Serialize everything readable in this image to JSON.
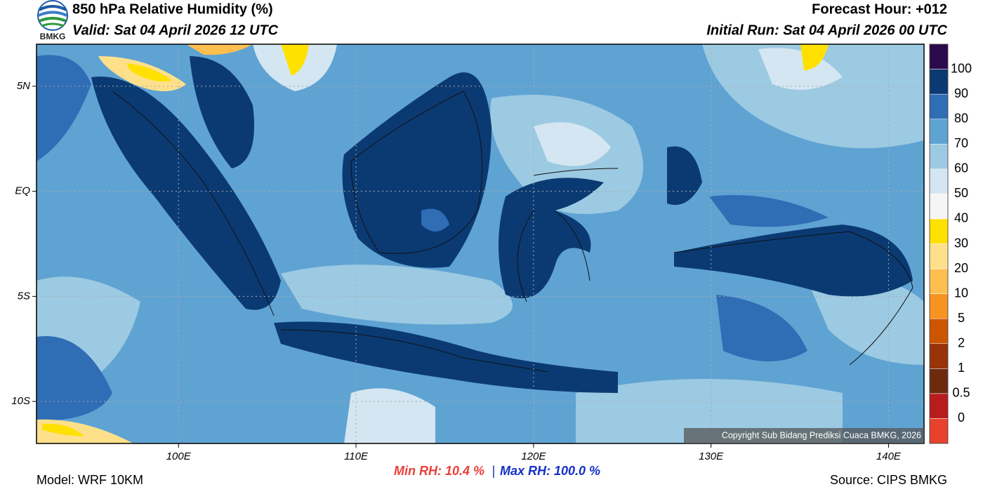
{
  "header": {
    "logo_text": "BMKG",
    "title": "850 hPa Relative Humidity (%)",
    "valid": "Valid: Sat 04 April 2026 12 UTC",
    "forecast_hour": "Forecast Hour: +012",
    "initial_run": "Initial Run: Sat 04 April 2026 00 UTC"
  },
  "map": {
    "lon_range": [
      92,
      142
    ],
    "lat_range": [
      -12,
      7
    ],
    "lat_ticks": [
      {
        "value": 5,
        "label": "5N"
      },
      {
        "value": 0,
        "label": "EQ"
      },
      {
        "value": -5,
        "label": "5S"
      },
      {
        "value": -10,
        "label": "10S"
      }
    ],
    "lon_ticks": [
      {
        "value": 100,
        "label": "100E"
      },
      {
        "value": 110,
        "label": "110E"
      },
      {
        "value": 120,
        "label": "120E"
      },
      {
        "value": 130,
        "label": "130E"
      },
      {
        "value": 140,
        "label": "140E"
      }
    ],
    "copyright": "Copyright Sub Bidang Prediksi Cuaca BMKG, 2026"
  },
  "colorbar": {
    "colors": [
      "#e8412e",
      "#b81c1c",
      "#6e2a0e",
      "#99330a",
      "#cc5500",
      "#f79320",
      "#fdc050",
      "#fee08b",
      "#ffe100",
      "#f5f5f5",
      "#d4e6f1",
      "#9ccae2",
      "#5fa3d3",
      "#2f6db5",
      "#0b3a73",
      "#2a0a4a"
    ],
    "labels": [
      0,
      0.5,
      1,
      2,
      5,
      10,
      20,
      30,
      40,
      50,
      60,
      70,
      80,
      90,
      100
    ]
  },
  "footer": {
    "model": "Model: WRF 10KM",
    "min_rh": "Min RH:  10.4 %",
    "separator": "|",
    "max_rh": "Max RH: 100.0 %",
    "source": "Source: CIPS BMKG"
  }
}
